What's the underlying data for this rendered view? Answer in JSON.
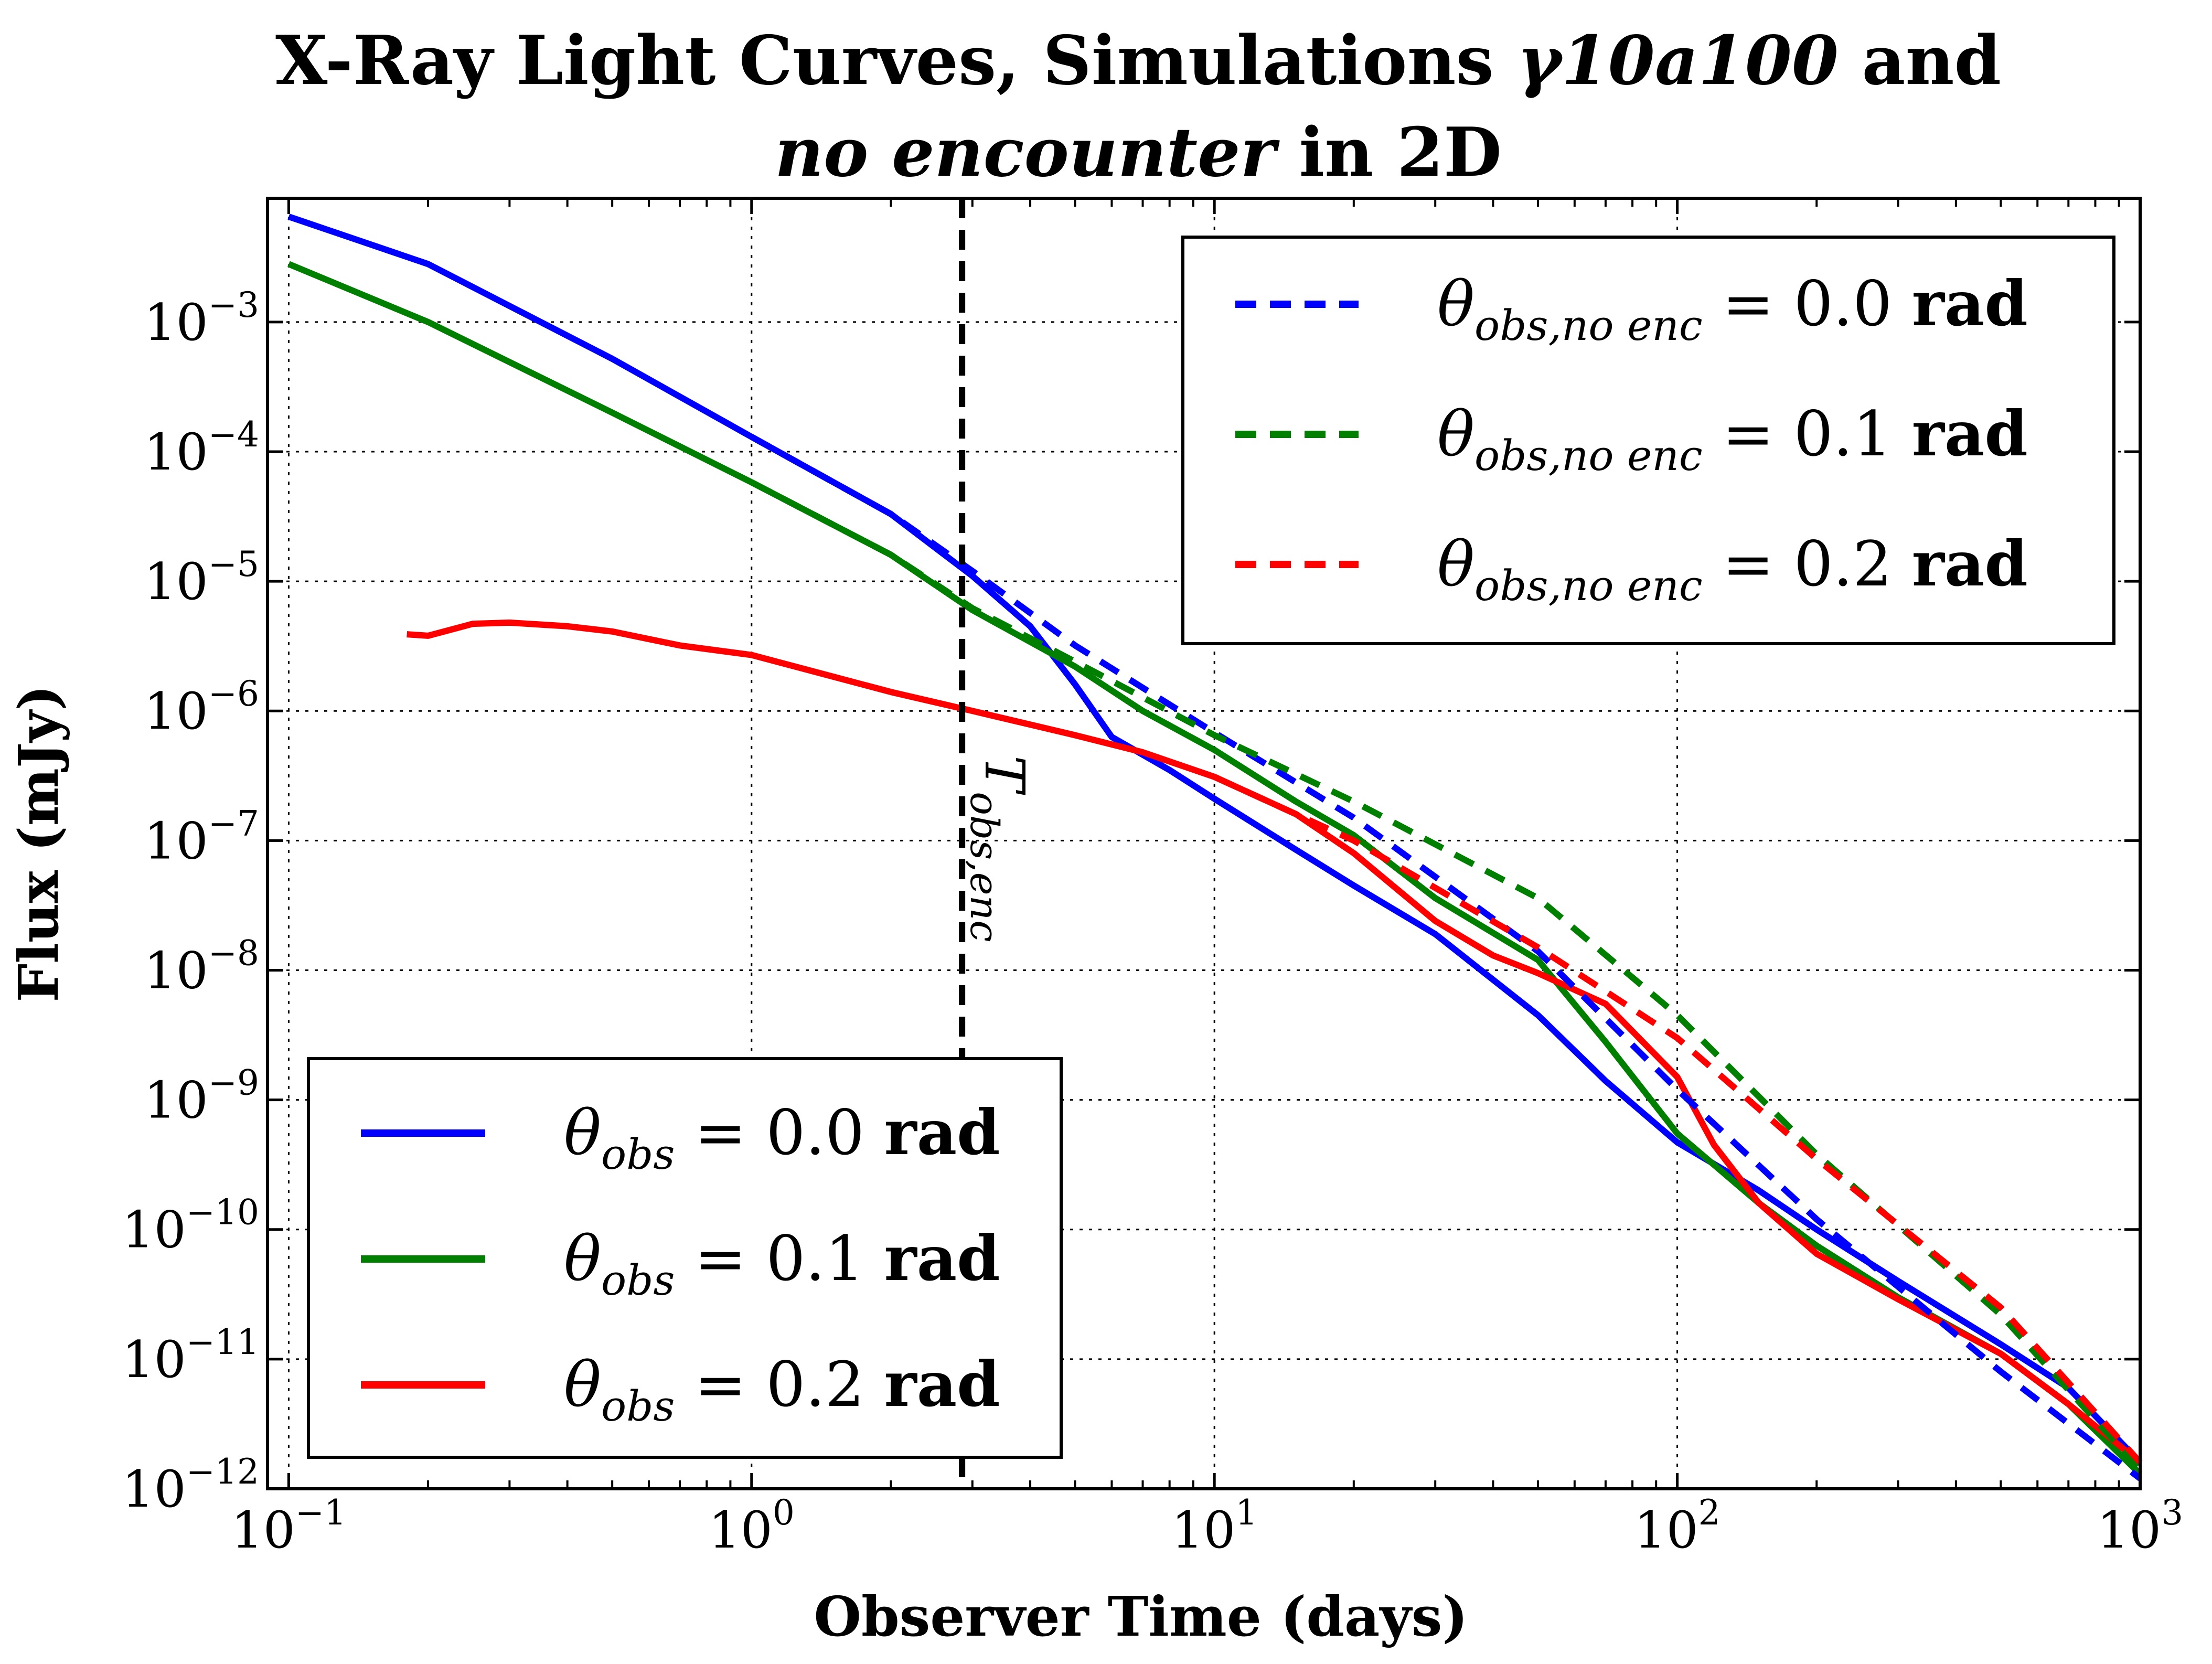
{
  "chart_data": {
    "type": "line",
    "title": {
      "line1_prefix": "X-Ray Light Curves, Simulations ",
      "line1_math": "γ10a100",
      "line1_suffix": " and",
      "line2_italic": "no encounter",
      "line2_suffix": " in 2D"
    },
    "xlabel": "Observer Time (days)",
    "ylabel": "Flux (mJy)",
    "xscale": "log",
    "yscale": "log",
    "xlim": [
      0.09,
      1000
    ],
    "ylim": [
      1e-12,
      0.009
    ],
    "grid": true,
    "x_ticks": [
      {
        "value": 0.1,
        "base": "10",
        "exp": "−1"
      },
      {
        "value": 1,
        "base": "10",
        "exp": "0"
      },
      {
        "value": 10,
        "base": "10",
        "exp": "1"
      },
      {
        "value": 100,
        "base": "10",
        "exp": "2"
      },
      {
        "value": 1000,
        "base": "10",
        "exp": "3"
      }
    ],
    "y_ticks": [
      {
        "value": 1e-12,
        "base": "10",
        "exp": "−12"
      },
      {
        "value": 1e-11,
        "base": "10",
        "exp": "−11"
      },
      {
        "value": 1e-10,
        "base": "10",
        "exp": "−10"
      },
      {
        "value": 1e-09,
        "base": "10",
        "exp": "−9"
      },
      {
        "value": 1e-08,
        "base": "10",
        "exp": "−8"
      },
      {
        "value": 1e-07,
        "base": "10",
        "exp": "−7"
      },
      {
        "value": 1e-06,
        "base": "10",
        "exp": "−6"
      },
      {
        "value": 1e-05,
        "base": "10",
        "exp": "−5"
      },
      {
        "value": 0.0001,
        "base": "10",
        "exp": "−4"
      },
      {
        "value": 0.001,
        "base": "10",
        "exp": "−3"
      }
    ],
    "annotation": {
      "x": 2.85,
      "label_main": "T",
      "label_sub": "obs,enc"
    },
    "legend_solid": {
      "placement": "lower-left",
      "entries": [
        {
          "symbol": "θ",
          "sub": "obs",
          "value": " = 0.0 ",
          "unit": "rad",
          "color": "#0000ff"
        },
        {
          "symbol": "θ",
          "sub": "obs",
          "value": " = 0.1 ",
          "unit": "rad",
          "color": "#007f00"
        },
        {
          "symbol": "θ",
          "sub": "obs",
          "value": " = 0.2 ",
          "unit": "rad",
          "color": "#ff0000"
        }
      ]
    },
    "legend_dashed": {
      "placement": "upper-right",
      "entries": [
        {
          "symbol": "θ",
          "sub": "obs,no enc",
          "value": " = 0.0 ",
          "unit": "rad",
          "color": "#0000ff"
        },
        {
          "symbol": "θ",
          "sub": "obs,no enc",
          "value": " = 0.1 ",
          "unit": "rad",
          "color": "#007f00"
        },
        {
          "symbol": "θ",
          "sub": "obs,no enc",
          "value": " = 0.2 ",
          "unit": "rad",
          "color": "#ff0000"
        }
      ]
    },
    "series": [
      {
        "color": "#0000ff",
        "style": "solid",
        "points": [
          [
            0.1,
            0.0065
          ],
          [
            0.2,
            0.0028
          ],
          [
            0.5,
            0.00052
          ],
          [
            1,
            0.00013
          ],
          [
            2,
            3.3e-05
          ],
          [
            3,
            1.1e-05
          ],
          [
            4,
            4.5e-06
          ],
          [
            5,
            1.6e-06
          ],
          [
            6,
            6.3e-07
          ],
          [
            8,
            3.5e-07
          ],
          [
            10,
            2.1e-07
          ],
          [
            15,
            8.5e-08
          ],
          [
            20,
            4.5e-08
          ],
          [
            30,
            1.9e-08
          ],
          [
            50,
            4.5e-09
          ],
          [
            70,
            1.4e-09
          ],
          [
            100,
            4.7e-10
          ],
          [
            150,
            2e-10
          ],
          [
            200,
            1e-10
          ],
          [
            300,
            4e-11
          ],
          [
            500,
            1.3e-11
          ],
          [
            700,
            6e-12
          ],
          [
            1000,
            1.6e-12
          ]
        ]
      },
      {
        "color": "#007f00",
        "style": "solid",
        "points": [
          [
            0.1,
            0.0028
          ],
          [
            0.2,
            0.001
          ],
          [
            0.5,
            0.0002
          ],
          [
            1,
            5.8e-05
          ],
          [
            2,
            1.6e-05
          ],
          [
            3,
            6e-06
          ],
          [
            5,
            2.2e-06
          ],
          [
            7,
            1e-06
          ],
          [
            10,
            5e-07
          ],
          [
            15,
            2e-07
          ],
          [
            20,
            1.1e-07
          ],
          [
            30,
            3.6e-08
          ],
          [
            50,
            1.2e-08
          ],
          [
            70,
            2.8e-09
          ],
          [
            100,
            5.5e-10
          ],
          [
            150,
            1.6e-10
          ],
          [
            200,
            7.5e-11
          ],
          [
            300,
            3e-11
          ],
          [
            500,
            1.1e-11
          ],
          [
            700,
            4.5e-12
          ],
          [
            1000,
            1.3e-12
          ]
        ]
      },
      {
        "color": "#ff0000",
        "style": "solid",
        "points": [
          [
            0.18,
            3.9e-06
          ],
          [
            0.2,
            3.8e-06
          ],
          [
            0.25,
            4.7e-06
          ],
          [
            0.3,
            4.8e-06
          ],
          [
            0.4,
            4.5e-06
          ],
          [
            0.5,
            4.1e-06
          ],
          [
            0.7,
            3.2e-06
          ],
          [
            1,
            2.7e-06
          ],
          [
            2,
            1.4e-06
          ],
          [
            3,
            1e-06
          ],
          [
            5,
            6.5e-07
          ],
          [
            7,
            4.8e-07
          ],
          [
            10,
            3.1e-07
          ],
          [
            15,
            1.6e-07
          ],
          [
            20,
            8e-08
          ],
          [
            30,
            2.4e-08
          ],
          [
            40,
            1.3e-08
          ],
          [
            50,
            9.5e-09
          ],
          [
            70,
            5.5e-09
          ],
          [
            100,
            1.5e-09
          ],
          [
            120,
            4.5e-10
          ],
          [
            150,
            1.6e-10
          ],
          [
            200,
            6.5e-11
          ],
          [
            300,
            2.9e-11
          ],
          [
            500,
            1.1e-11
          ],
          [
            700,
            4.5e-12
          ],
          [
            1000,
            1.6e-12
          ]
        ]
      },
      {
        "color": "#0000ff",
        "style": "dashed",
        "points": [
          [
            1,
            0.00013
          ],
          [
            2,
            3.3e-05
          ],
          [
            3,
            1.2e-05
          ],
          [
            5,
            3.2e-06
          ],
          [
            10,
            6.8e-07
          ],
          [
            20,
            1.5e-07
          ],
          [
            50,
            1.4e-08
          ],
          [
            100,
            1.2e-09
          ],
          [
            200,
            1.2e-10
          ],
          [
            500,
            8e-12
          ],
          [
            1000,
            1.2e-12
          ]
        ]
      },
      {
        "color": "#007f00",
        "style": "dashed",
        "points": [
          [
            1,
            5.8e-05
          ],
          [
            2,
            1.6e-05
          ],
          [
            3,
            6.2e-06
          ],
          [
            5,
            2.4e-06
          ],
          [
            10,
            6.5e-07
          ],
          [
            20,
            2e-07
          ],
          [
            50,
            3.6e-08
          ],
          [
            100,
            4.5e-09
          ],
          [
            200,
            3.8e-10
          ],
          [
            500,
            2.2e-11
          ],
          [
            1000,
            1.4e-12
          ]
        ]
      },
      {
        "color": "#ff0000",
        "style": "dashed",
        "points": [
          [
            10,
            3.1e-07
          ],
          [
            20,
            1e-07
          ],
          [
            50,
            1.5e-08
          ],
          [
            100,
            3e-09
          ],
          [
            200,
            3.5e-10
          ],
          [
            500,
            2.5e-11
          ],
          [
            1000,
            1.6e-12
          ]
        ]
      }
    ]
  }
}
